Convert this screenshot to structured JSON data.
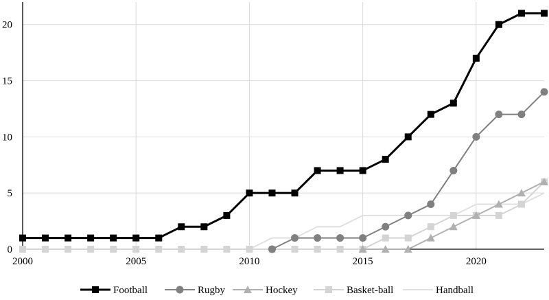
{
  "chart_data": {
    "type": "line",
    "title": "",
    "xlabel": "",
    "ylabel": "",
    "xlim": [
      2000,
      2023
    ],
    "ylim": [
      0,
      22
    ],
    "x_ticks": [
      2000,
      2005,
      2010,
      2015,
      2020
    ],
    "y_ticks": [
      0,
      5,
      10,
      15,
      20
    ],
    "grid": true,
    "legend_position": "bottom",
    "x": [
      2000,
      2001,
      2002,
      2003,
      2004,
      2005,
      2006,
      2007,
      2008,
      2009,
      2010,
      2011,
      2012,
      2013,
      2014,
      2015,
      2016,
      2017,
      2018,
      2019,
      2020,
      2021,
      2022,
      2023
    ],
    "series": [
      {
        "name": "Football",
        "color": "#000000",
        "marker": "square",
        "x": [
          2000,
          2001,
          2002,
          2003,
          2004,
          2005,
          2006,
          2007,
          2008,
          2009,
          2010,
          2011,
          2012,
          2013,
          2014,
          2015,
          2016,
          2017,
          2018,
          2019,
          2020,
          2021,
          2022,
          2023
        ],
        "values": [
          1,
          1,
          1,
          1,
          1,
          1,
          1,
          2,
          2,
          3,
          5,
          5,
          5,
          7,
          7,
          7,
          8,
          10,
          12,
          13,
          17,
          20,
          21,
          21
        ]
      },
      {
        "name": "Rugby",
        "color": "#808080",
        "marker": "circle",
        "x": [
          2011,
          2012,
          2013,
          2014,
          2015,
          2016,
          2017,
          2018,
          2019,
          2020,
          2021,
          2022,
          2023
        ],
        "values": [
          0,
          1,
          1,
          1,
          1,
          2,
          3,
          4,
          7,
          10,
          12,
          12,
          14
        ]
      },
      {
        "name": "Hockey",
        "color": "#b0b0b0",
        "marker": "triangle",
        "x": [
          2015,
          2016,
          2017,
          2018,
          2019,
          2020,
          2021,
          2022,
          2023
        ],
        "values": [
          0,
          0,
          0,
          1,
          2,
          3,
          4,
          5,
          6
        ]
      },
      {
        "name": "Basket-ball",
        "color": "#d4d4d4",
        "marker": "square",
        "x": [
          2000,
          2001,
          2002,
          2003,
          2004,
          2005,
          2006,
          2007,
          2008,
          2009,
          2010,
          2011,
          2012,
          2013,
          2014,
          2015,
          2016,
          2017,
          2018,
          2019,
          2020,
          2021,
          2022,
          2023
        ],
        "values": [
          0,
          0,
          0,
          0,
          0,
          0,
          0,
          0,
          0,
          0,
          0,
          0,
          0,
          0,
          0,
          0,
          1,
          1,
          2,
          3,
          3,
          3,
          4,
          6
        ]
      },
      {
        "name": "Handball",
        "color": "#e0e0e0",
        "marker": "none",
        "x": [
          2010,
          2011,
          2012,
          2013,
          2014,
          2015,
          2016,
          2017,
          2018,
          2019,
          2020,
          2021,
          2022,
          2023
        ],
        "values": [
          0,
          1,
          1,
          2,
          2,
          3,
          3,
          3,
          3,
          3,
          4,
          4,
          4,
          5
        ]
      }
    ]
  }
}
